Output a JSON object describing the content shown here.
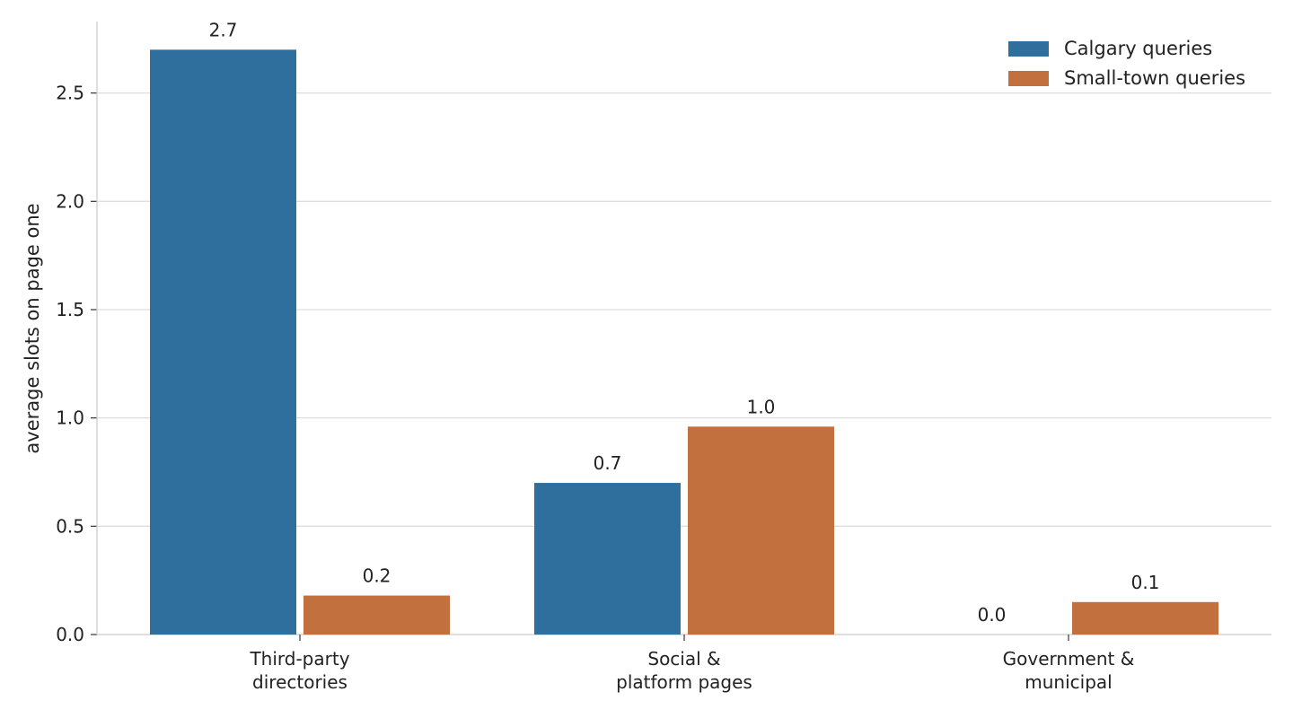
{
  "chart_data": {
    "type": "bar",
    "categories": [
      [
        "Third-party",
        "directories"
      ],
      [
        "Social &",
        "platform pages"
      ],
      [
        "Government &",
        "municipal"
      ]
    ],
    "series": [
      {
        "name": "Calgary queries",
        "values": [
          2.7,
          0.7,
          0.0
        ],
        "labels": [
          "2.7",
          "0.7",
          "0.0"
        ],
        "color": "#2e6f9e"
      },
      {
        "name": "Small-town queries",
        "values": [
          0.18,
          0.96,
          0.15
        ],
        "labels": [
          "0.2",
          "1.0",
          "0.1"
        ],
        "color": "#c2703e"
      }
    ],
    "ylabel": "average slots on page one",
    "xlabel": "",
    "ylim": [
      0,
      2.83
    ],
    "yticks": [
      0.0,
      0.5,
      1.0,
      1.5,
      2.0,
      2.5
    ],
    "ytick_labels": [
      "0.0",
      "0.5",
      "1.0",
      "1.5",
      "2.0",
      "2.5"
    ],
    "grid": "horizontal",
    "legend": "top-right"
  }
}
